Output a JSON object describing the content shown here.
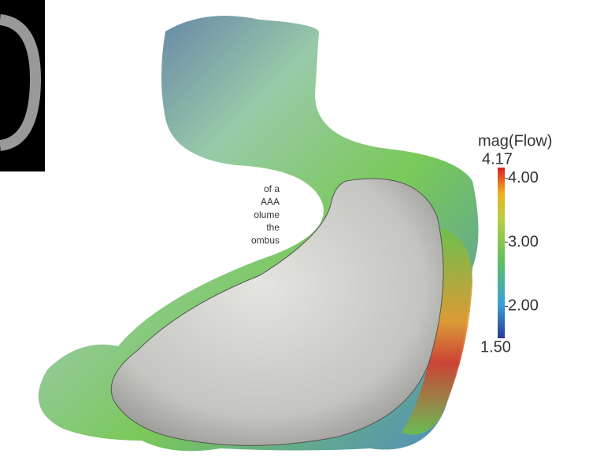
{
  "figure": {
    "caption_fragment": [
      "of   a",
      "AAA",
      "olume",
      "the",
      "ombus"
    ],
    "colorbar": {
      "title": "mag(Flow)",
      "min": {
        "value": 1.5,
        "label": "1.50"
      },
      "max": {
        "value": 4.17,
        "label": "4.17"
      },
      "ticks": [
        {
          "value": 2,
          "label": "2.00"
        },
        {
          "value": 3,
          "label": "3.00"
        },
        {
          "value": 4,
          "label": "4.00"
        }
      ]
    }
  }
}
